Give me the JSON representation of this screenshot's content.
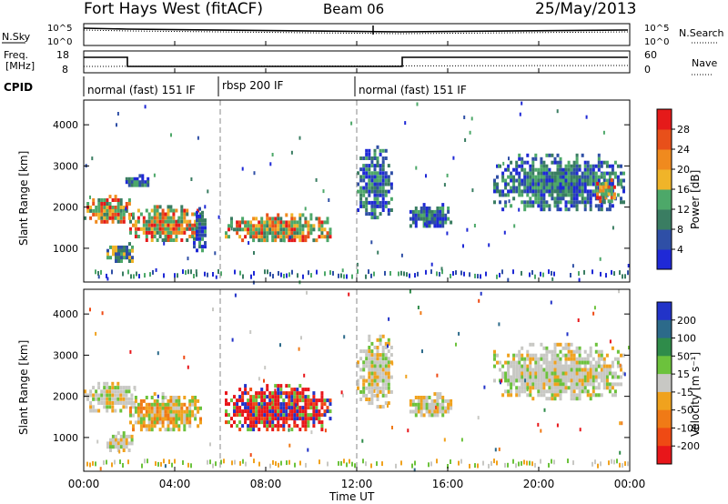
{
  "header": {
    "station": "Fort Hays West (fitACF)",
    "beam": "Beam 06",
    "date": "25/May/2013"
  },
  "noise_panel": {
    "left_label": "N.Sky",
    "left_ticks": [
      "10^5",
      "10^0"
    ],
    "right_label": "N.Search",
    "right_ticks": [
      "10^5",
      "10^0"
    ]
  },
  "freq_panel": {
    "left_label_1": "Freq.",
    "left_label_2": "[MHz]",
    "left_ticks": [
      "18",
      "8"
    ],
    "right_label": "Nave",
    "right_ticks": [
      "60",
      "0"
    ]
  },
  "cpid": {
    "label": "CPID",
    "segments": [
      {
        "label": "normal (fast) 151 IF",
        "start_h": 0,
        "end_h": 6
      },
      {
        "label": "rbsp 200 IF",
        "start_h": 6,
        "end_h": 12
      },
      {
        "label": "normal (fast) 151 IF",
        "start_h": 12,
        "end_h": 24
      }
    ]
  },
  "axes": {
    "x_label": "Time UT",
    "x_ticks": [
      "00:00",
      "04:00",
      "08:00",
      "12:00",
      "16:00",
      "20:00",
      "00:00"
    ],
    "x_range_h": [
      0,
      24
    ],
    "y_label": "Slant Range [km]",
    "y_ticks": [
      "1000",
      "2000",
      "3000",
      "4000"
    ],
    "y_range_km": [
      180,
      4600
    ]
  },
  "power_colorbar": {
    "title": "Power [dB]",
    "ticks": [
      "4",
      "8",
      "12",
      "16",
      "20",
      "24",
      "28"
    ],
    "colors": [
      "#1f29d6",
      "#2f4fa6",
      "#3a7d62",
      "#4da869",
      "#f0b429",
      "#f08a1e",
      "#e8501a",
      "#e51a1a"
    ]
  },
  "velocity_colorbar": {
    "title": "Velocity [m s⁻¹]",
    "ticks": [
      "200",
      "100",
      "50",
      "15",
      "-15",
      "-50",
      "-100",
      "-200"
    ],
    "colors": [
      "#2233c8",
      "#2c6a8a",
      "#2f8c4a",
      "#6cc23c",
      "#c8c8c4",
      "#f0a21e",
      "#f07a16",
      "#ef4a14",
      "#e8161a"
    ]
  },
  "chart_data": {
    "type": "heatmap",
    "x_unit": "hours UT",
    "y_unit": "km",
    "panels": [
      {
        "name": "Power",
        "blobs": [
          {
            "t0": 0.0,
            "t1": 2.2,
            "r0": 1600,
            "r1": 2300,
            "level": "high"
          },
          {
            "t0": 2.0,
            "t1": 5.2,
            "r0": 1150,
            "r1": 2050,
            "level": "high"
          },
          {
            "t0": 1.0,
            "t1": 2.2,
            "r0": 650,
            "r1": 1150,
            "level": "mid"
          },
          {
            "t0": 4.8,
            "t1": 5.4,
            "r0": 900,
            "r1": 2000,
            "level": "low"
          },
          {
            "t0": 6.2,
            "t1": 10.9,
            "r0": 1150,
            "r1": 1850,
            "level": "high"
          },
          {
            "t0": 1.6,
            "t1": 3.0,
            "r0": 2500,
            "r1": 2800,
            "level": "low"
          },
          {
            "t0": 12.0,
            "t1": 13.6,
            "r0": 1700,
            "r1": 3500,
            "level": "low"
          },
          {
            "t0": 14.2,
            "t1": 16.2,
            "r0": 1500,
            "r1": 2100,
            "level": "low"
          },
          {
            "t0": 18.0,
            "t1": 23.8,
            "r0": 1900,
            "r1": 3300,
            "level": "low"
          },
          {
            "t0": 22.4,
            "t1": 23.4,
            "r0": 2100,
            "r1": 2700,
            "level": "high"
          }
        ]
      },
      {
        "name": "Velocity",
        "blobs": [
          {
            "t0": 0.0,
            "t1": 2.3,
            "r0": 1600,
            "r1": 2350,
            "level": "grey"
          },
          {
            "t0": 2.0,
            "t1": 5.2,
            "r0": 1150,
            "r1": 2100,
            "level": "orange"
          },
          {
            "t0": 1.0,
            "t1": 2.3,
            "r0": 650,
            "r1": 1150,
            "level": "grey"
          },
          {
            "t0": 6.2,
            "t1": 10.9,
            "r0": 1150,
            "r1": 2300,
            "level": "red"
          },
          {
            "t0": 12.0,
            "t1": 13.6,
            "r0": 1700,
            "r1": 3500,
            "level": "grey"
          },
          {
            "t0": 14.2,
            "t1": 16.2,
            "r0": 1500,
            "r1": 2100,
            "level": "grey"
          },
          {
            "t0": 18.0,
            "t1": 23.8,
            "r0": 1900,
            "r1": 3300,
            "level": "grey"
          }
        ]
      }
    ]
  }
}
